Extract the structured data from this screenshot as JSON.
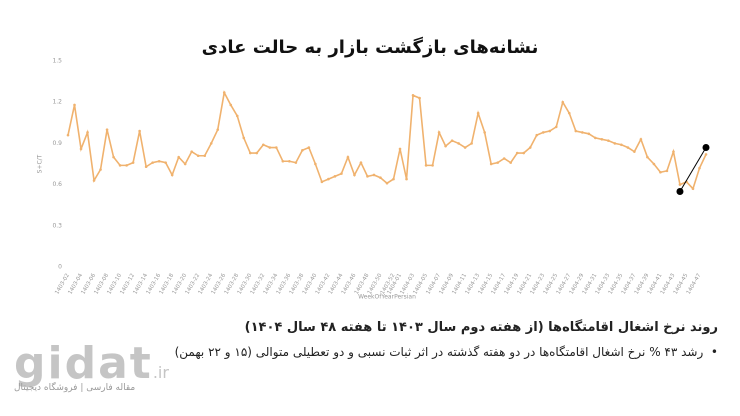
{
  "chart_data": {
    "type": "line",
    "title": "نشانه‌های بازگشت بازار به حالت عادی",
    "xlabel": "WeekOfYearPersian",
    "ylabel": "S+C/T",
    "categories": [
      "1403-02",
      null,
      "1403-04",
      null,
      "1403-06",
      null,
      "1403-08",
      null,
      "1403-10",
      null,
      "1403-12",
      null,
      "1403-14",
      null,
      "1403-16",
      null,
      "1403-18",
      null,
      "1403-20",
      null,
      "1403-22",
      null,
      "1403-24",
      null,
      "1403-26",
      null,
      "1403-28",
      null,
      "1403-30",
      null,
      "1403-32",
      null,
      "1403-34",
      null,
      "1403-36",
      null,
      "1403-38",
      null,
      "1403-40",
      null,
      "1403-42",
      null,
      "1403-44",
      null,
      "1403-46",
      null,
      "1403-48",
      null,
      "1403-50",
      null,
      "1403-52",
      "1404-01",
      null,
      "1404-03",
      null,
      "1404-05",
      null,
      "1404-07",
      null,
      "1404-09",
      null,
      "1404-11",
      null,
      "1404-13",
      null,
      "1404-15",
      null,
      "1404-17",
      null,
      "1404-19",
      null,
      "1404-21",
      null,
      "1404-23",
      null,
      "1404-25",
      null,
      "1404-27",
      null,
      "1404-29",
      null,
      "1404-31",
      null,
      "1404-33",
      null,
      "1404-35",
      null,
      "1404-37",
      null,
      "1404-39",
      null,
      "1404-41",
      null,
      "1404-43",
      null,
      "1404-45",
      null,
      "1404-47",
      null
    ],
    "series": [
      {
        "color": "#f0b26e",
        "markers": true,
        "values": [
          0.96,
          1.18,
          0.86,
          0.98,
          0.63,
          0.71,
          1.0,
          0.8,
          0.74,
          0.74,
          0.76,
          0.99,
          0.73,
          0.76,
          0.77,
          0.76,
          0.67,
          0.8,
          0.75,
          0.84,
          0.81,
          0.81,
          0.9,
          1.0,
          1.27,
          1.18,
          1.1,
          0.94,
          0.83,
          0.83,
          0.89,
          0.87,
          0.87,
          0.77,
          0.77,
          0.76,
          0.85,
          0.87,
          0.75,
          0.62,
          0.64,
          0.66,
          0.68,
          0.8,
          0.67,
          0.76,
          0.66,
          0.67,
          0.65,
          0.61,
          0.64,
          0.86,
          0.64,
          1.25,
          1.23,
          0.74,
          0.74,
          0.98,
          0.88,
          0.92,
          0.9,
          0.87,
          0.9,
          1.12,
          0.98,
          0.75,
          0.76,
          0.79,
          0.76,
          0.83,
          0.83,
          0.87,
          0.96,
          0.98,
          0.99,
          1.02,
          1.2,
          1.12,
          0.99,
          0.98,
          0.97,
          0.94,
          0.93,
          0.92,
          0.9,
          0.89,
          0.87,
          0.84,
          0.93,
          0.8,
          0.75,
          0.69,
          0.7,
          0.84,
          0.6,
          0.62,
          0.57,
          0.72,
          0.82
        ]
      },
      {
        "color": "#000000",
        "markers": true,
        "big_markers": true,
        "connect_gaps": true,
        "values": [
          null,
          null,
          null,
          null,
          null,
          null,
          null,
          null,
          null,
          null,
          null,
          null,
          null,
          null,
          null,
          null,
          null,
          null,
          null,
          null,
          null,
          null,
          null,
          null,
          null,
          null,
          null,
          null,
          null,
          null,
          null,
          null,
          null,
          null,
          null,
          null,
          null,
          null,
          null,
          null,
          null,
          null,
          null,
          null,
          null,
          null,
          null,
          null,
          null,
          null,
          null,
          null,
          null,
          null,
          null,
          null,
          null,
          null,
          null,
          null,
          null,
          null,
          null,
          null,
          null,
          null,
          null,
          null,
          null,
          null,
          null,
          null,
          null,
          null,
          null,
          null,
          null,
          null,
          null,
          null,
          null,
          null,
          null,
          null,
          null,
          null,
          null,
          null,
          null,
          null,
          null,
          null,
          null,
          null,
          0.55,
          null,
          null,
          null,
          0.87
        ]
      }
    ],
    "ylim": [
      0,
      1.5
    ],
    "yticks": [
      0,
      0.3,
      0.6,
      0.9,
      1.2,
      1.5
    ],
    "grid": false
  },
  "caption": {
    "heading": "روند نرخ اشغال اقامتگاه‌ها (از هفته دوم سال ۱۴۰۳ تا هفته ۴۸ سال ۱۴۰۴)",
    "bullet": "رشد ۴۳ % نرخ اشغال اقامتگاه‌ها در دو هفته گذشته در اثر ثبات نسبی و دو تعطیلی متوالی (۱۵ و ۲۲ بهمن)"
  },
  "watermark": {
    "brand": "gidat",
    "domain": ".ir",
    "tagline": "مقاله فارسی | فروشگاه دیجیتال"
  }
}
